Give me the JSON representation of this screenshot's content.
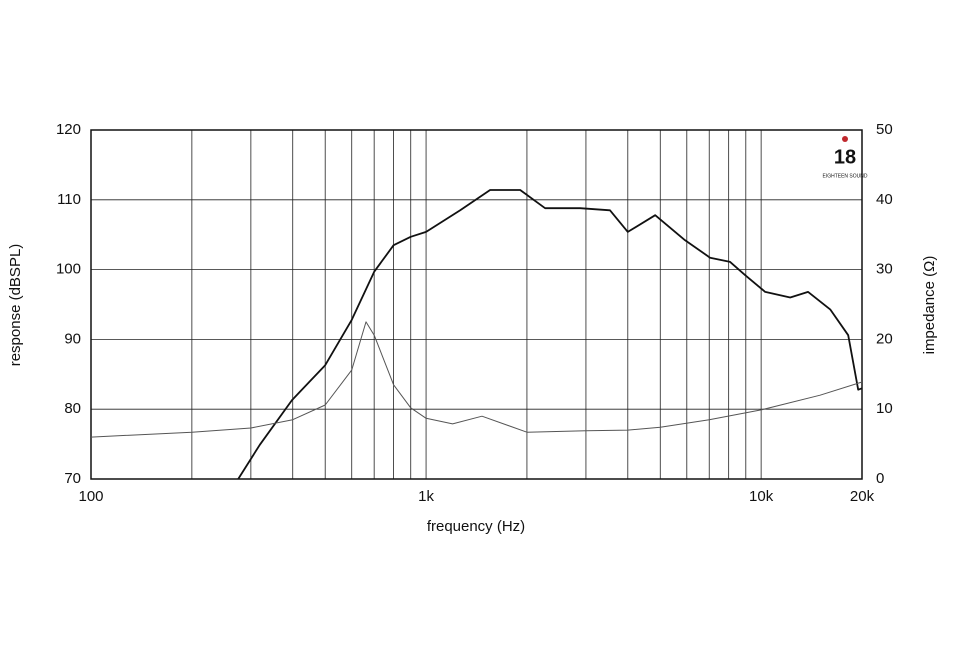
{
  "chart_data": {
    "type": "line",
    "xlabel": "frequency (Hz)",
    "ylabel": "response (dBSPL)",
    "y2label": "impedance (Ω)",
    "logo": {
      "number": "18",
      "text": "EIGHTEEN SOUND"
    },
    "xscale": "log",
    "xlim": [
      100,
      20000
    ],
    "xticks": [
      100,
      {
        "value": 1000,
        "label": "1k"
      },
      {
        "value": 10000,
        "label": "10k"
      },
      {
        "value": 20000,
        "label": "20k"
      }
    ],
    "xgrid": [
      200,
      300,
      400,
      500,
      600,
      700,
      800,
      900,
      2000,
      3000,
      4000,
      5000,
      6000,
      7000,
      8000,
      9000
    ],
    "ylim": [
      70,
      120
    ],
    "yticks": [
      70,
      80,
      90,
      100,
      110,
      120
    ],
    "y2lim": [
      0,
      50
    ],
    "y2ticks": [
      0,
      10,
      20,
      30,
      40,
      50
    ],
    "grid": true,
    "series": [
      {
        "color": "#111111",
        "axis": "y",
        "x": [
          275,
          319,
          398,
          500,
          600,
          700,
          800,
          900,
          1000,
          1264,
          1553,
          1909,
          2266,
          2884,
          3540,
          4000,
          4830,
          5930,
          7040,
          8080,
          8960,
          10280,
          12210,
          13810,
          16070,
          18190,
          19490,
          20000
        ],
        "values": [
          70,
          74.9,
          81.3,
          86.3,
          92.8,
          99.7,
          103.5,
          104.7,
          105.4,
          108.5,
          111.4,
          111.4,
          108.8,
          108.8,
          108.5,
          105.4,
          107.8,
          104.2,
          101.7,
          101.1,
          99.2,
          96.8,
          96,
          96.8,
          94.3,
          90.6,
          82.8,
          83
        ]
      },
      {
        "color": "#555555",
        "axis": "y2",
        "x": [
          100,
          200,
          300,
          400,
          500,
          600,
          662,
          700,
          800,
          900,
          1000,
          1200,
          1469,
          2000,
          3000,
          4000,
          5000,
          7000,
          10000,
          15000,
          20000
        ],
        "values": [
          6.0,
          6.7,
          7.3,
          8.5,
          10.6,
          15.6,
          22.5,
          20.6,
          13.5,
          10.2,
          8.7,
          7.9,
          9.0,
          6.7,
          6.9,
          7.0,
          7.4,
          8.5,
          9.9,
          12.0,
          13.9
        ]
      }
    ]
  }
}
